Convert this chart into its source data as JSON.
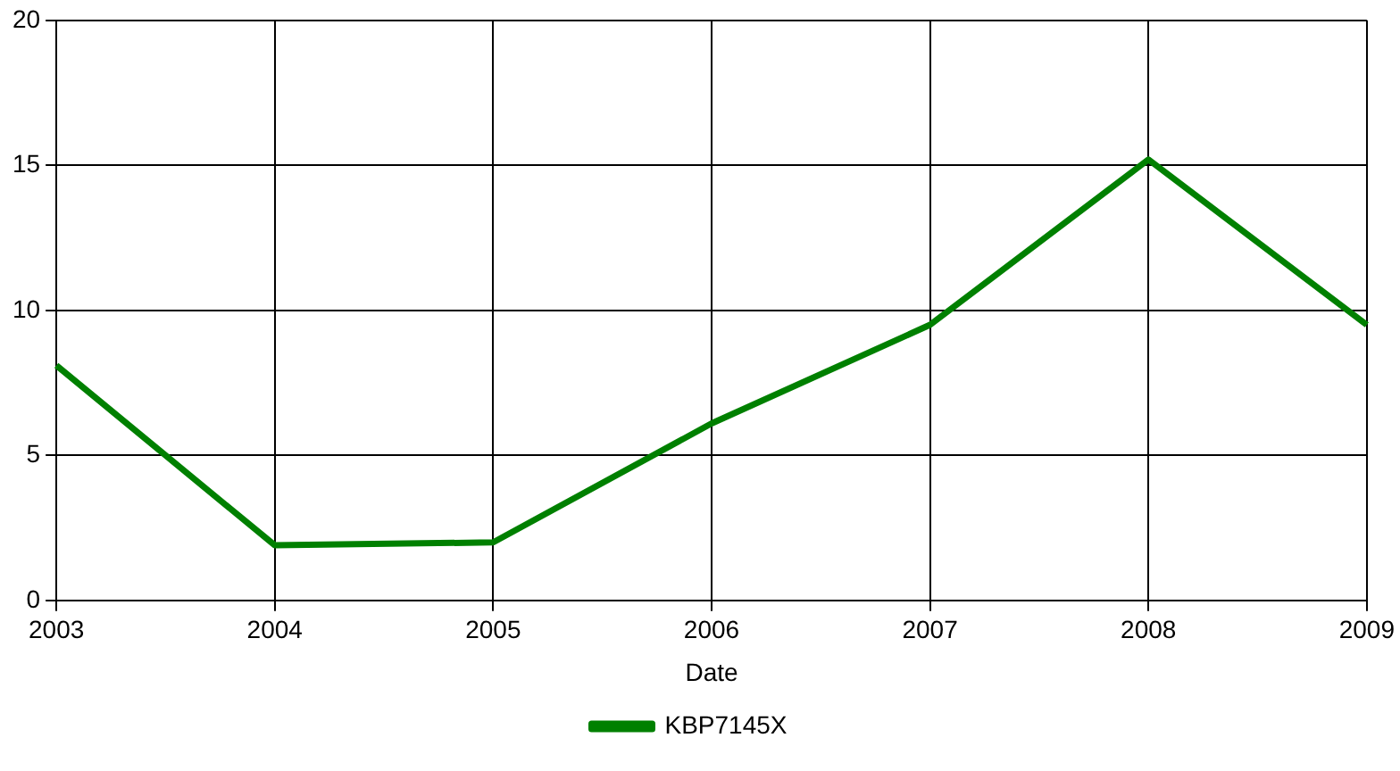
{
  "chart_data": {
    "type": "line",
    "xlabel": "Date",
    "categories": [
      "2003",
      "2004",
      "2005",
      "2006",
      "2007",
      "2008",
      "2009"
    ],
    "series": [
      {
        "name": "KBP7145X",
        "color": "#008000",
        "values": [
          8.1,
          1.9,
          2.0,
          6.1,
          9.5,
          15.2,
          9.5
        ]
      }
    ],
    "ylim": [
      0,
      20
    ],
    "yticks": [
      0,
      5,
      10,
      15,
      20
    ],
    "grid": true,
    "legend": "bottom",
    "marker": "none",
    "line_style": "solid"
  }
}
